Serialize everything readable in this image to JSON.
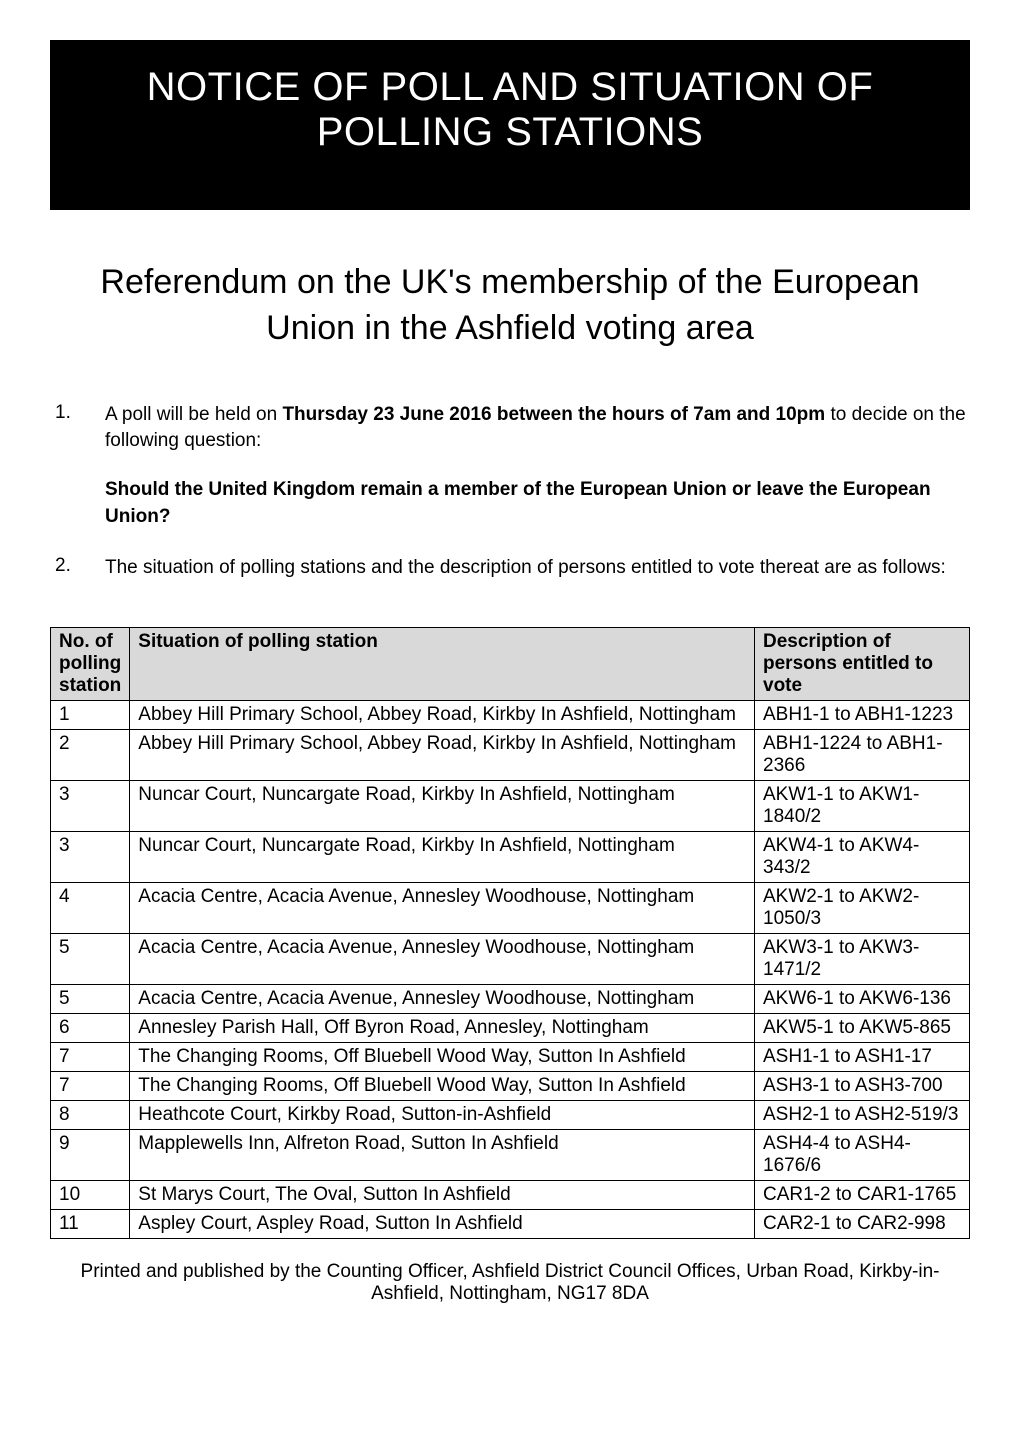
{
  "header": {
    "title": "NOTICE OF POLL AND SITUATION OF POLLING STATIONS"
  },
  "subtitle": "Referendum on the UK's membership of the European Union in the Ashfield voting area",
  "items": [
    {
      "number": "1.",
      "text_before": "A poll will be held on ",
      "text_bold": "Thursday 23 June 2016 between the hours of 7am and 10pm",
      "text_after": " to decide on the following question:",
      "question": "Should the United Kingdom remain a member of the European Union or leave the European Union?"
    },
    {
      "number": "2.",
      "text_before": "The situation of polling stations and the description of persons entitled to vote thereat are as follows:",
      "text_bold": "",
      "text_after": "",
      "question": ""
    }
  ],
  "table": {
    "headers": {
      "col1": "No. of polling station",
      "col2": "Situation of polling station",
      "col3": "Description of persons entitled to vote"
    },
    "rows": [
      {
        "num": "1",
        "situation": "Abbey Hill Primary School, Abbey Road, Kirkby In Ashfield, Nottingham",
        "desc": "ABH1-1 to ABH1-1223"
      },
      {
        "num": "2",
        "situation": "Abbey Hill Primary School, Abbey Road, Kirkby In Ashfield, Nottingham",
        "desc": "ABH1-1224 to ABH1-2366"
      },
      {
        "num": "3",
        "situation": "Nuncar Court, Nuncargate Road, Kirkby In Ashfield, Nottingham",
        "desc": "AKW1-1 to AKW1-1840/2"
      },
      {
        "num": "3",
        "situation": "Nuncar Court, Nuncargate Road, Kirkby In Ashfield, Nottingham",
        "desc": "AKW4-1 to AKW4-343/2"
      },
      {
        "num": "4",
        "situation": "Acacia Centre, Acacia Avenue, Annesley Woodhouse, Nottingham",
        "desc": "AKW2-1 to AKW2-1050/3"
      },
      {
        "num": "5",
        "situation": "Acacia Centre, Acacia Avenue, Annesley Woodhouse, Nottingham",
        "desc": "AKW3-1 to AKW3-1471/2"
      },
      {
        "num": "5",
        "situation": "Acacia Centre, Acacia Avenue, Annesley Woodhouse, Nottingham",
        "desc": "AKW6-1 to AKW6-136"
      },
      {
        "num": "6",
        "situation": "Annesley Parish Hall, Off Byron Road, Annesley, Nottingham",
        "desc": "AKW5-1 to AKW5-865"
      },
      {
        "num": "7",
        "situation": "The Changing Rooms, Off Bluebell Wood Way, Sutton In Ashfield",
        "desc": "ASH1-1 to ASH1-17"
      },
      {
        "num": "7",
        "situation": "The Changing Rooms, Off Bluebell Wood Way, Sutton In Ashfield",
        "desc": "ASH3-1 to ASH3-700"
      },
      {
        "num": "8",
        "situation": "Heathcote Court, Kirkby Road, Sutton-in-Ashfield",
        "desc": "ASH2-1 to ASH2-519/3"
      },
      {
        "num": "9",
        "situation": "Mapplewells Inn, Alfreton Road, Sutton In Ashfield",
        "desc": "ASH4-4 to ASH4-1676/6"
      },
      {
        "num": "10",
        "situation": "St Marys Court, The Oval, Sutton In Ashfield",
        "desc": "CAR1-2 to CAR1-1765"
      },
      {
        "num": "11",
        "situation": "Aspley Court, Aspley Road, Sutton In Ashfield",
        "desc": "CAR2-1 to CAR2-998"
      }
    ]
  },
  "footer": "Printed and published by the Counting Officer, Ashfield District Council Offices, Urban Road, Kirkby-in-Ashfield, Nottingham, NG17 8DA"
}
